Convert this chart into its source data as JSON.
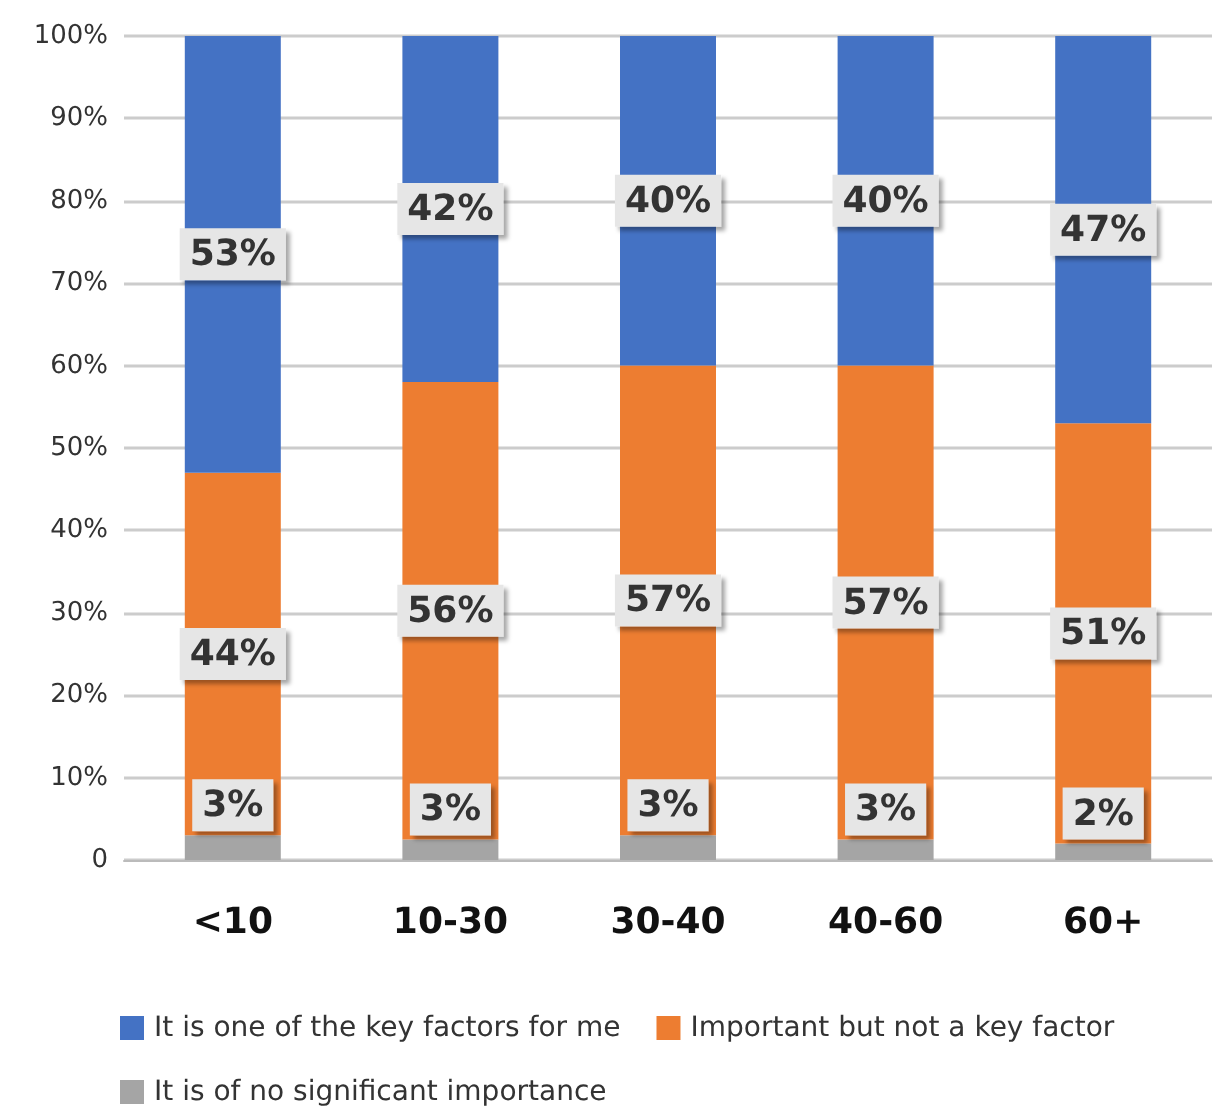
{
  "chart_data": {
    "type": "bar",
    "stacked": true,
    "categories": [
      "<10",
      "10-30",
      "30-40",
      "40-60",
      "60+"
    ],
    "series": [
      {
        "name": "It is of no significant importance",
        "color": "#a5a5a5",
        "values": [
          3,
          2.5,
          3,
          2.5,
          2
        ],
        "value_labels": [
          "3%",
          "3%",
          "3%",
          "3%",
          "2%"
        ]
      },
      {
        "name": "Important but not a key factor",
        "color": "#ed7d31",
        "values": [
          44,
          55.5,
          57,
          57.5,
          51
        ],
        "value_labels": [
          "44%",
          "56%",
          "57%",
          "57%",
          "51%"
        ]
      },
      {
        "name": "It is one of the key factors for me",
        "color": "#4472c4",
        "values": [
          53,
          42,
          40,
          40,
          47
        ],
        "value_labels": [
          "53%",
          "42%",
          "40%",
          "40%",
          "47%"
        ]
      }
    ],
    "ylim": [
      0,
      100
    ],
    "yticks": [
      0,
      {
        "value": 10,
        "label": "10%"
      },
      {
        "value": 20,
        "label": "20%"
      },
      {
        "value": 30,
        "label": "30%"
      },
      {
        "value": 40,
        "label": "40%"
      },
      {
        "value": 50,
        "label": "50%"
      },
      {
        "value": 60,
        "label": "60%"
      },
      {
        "value": 70,
        "label": "70%"
      },
      {
        "value": 80,
        "label": "80%"
      },
      {
        "value": 90,
        "label": "90%"
      },
      {
        "value": 100,
        "label": "100%"
      }
    ],
    "grid": "y",
    "legend": "bottom"
  }
}
